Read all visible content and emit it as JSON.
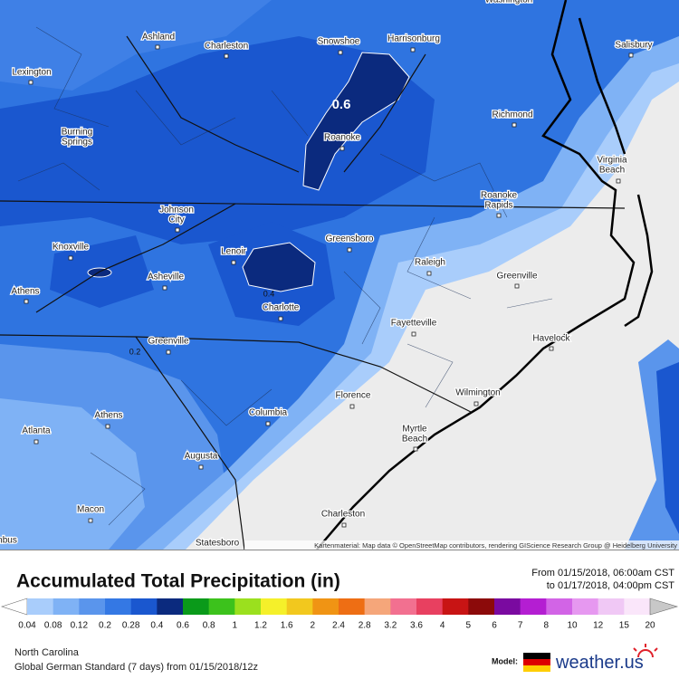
{
  "map": {
    "cities": [
      [
        "Washington"
      ],
      [
        "Ashland"
      ],
      [
        "Charleston"
      ],
      [
        "Snowshoe"
      ],
      [
        "Harrisonburg"
      ],
      [
        "Salisbury"
      ],
      [
        "Lexington"
      ],
      [
        "Richmond"
      ],
      [
        "Burning",
        "Springs"
      ],
      [
        "Roanoke"
      ],
      [
        "Virginia",
        "Beach"
      ],
      [
        "Roanoke",
        "Rapids"
      ],
      [
        "Johnson",
        "City"
      ],
      [
        "Greensboro"
      ],
      [
        "Knoxville"
      ],
      [
        "Lenoir"
      ],
      [
        "Raleigh"
      ],
      [
        "Asheville"
      ],
      [
        "Greenville"
      ],
      [
        "Athens"
      ],
      [
        "Charlotte"
      ],
      [
        "Fayetteville"
      ],
      [
        "Havelock"
      ],
      [
        "Greenville"
      ],
      [
        "Florence"
      ],
      [
        "Wilmington"
      ],
      [
        "Athens"
      ],
      [
        "Columbia"
      ],
      [
        "Atlanta"
      ],
      [
        "Myrtle",
        "Beach"
      ],
      [
        "Augusta"
      ],
      [
        "Macon"
      ],
      [
        "Charleston"
      ],
      [
        "Statesboro"
      ],
      [
        "nbus"
      ]
    ],
    "contour_labels": [
      "0.6",
      "0.4",
      "0.2"
    ],
    "attribution": "Kartenmaterial: Map data © OpenStreetMap contributors, rendering GIScience Research Group @ Heidelberg University"
  },
  "header": {
    "title": "Accumulated Total Precipitation (in)",
    "valid_from": "From 01/15/2018, 06:00am CST",
    "valid_to": "to 01/17/2018, 04:00pm CST"
  },
  "legend": {
    "labels": [
      "0.04",
      "0.08",
      "0.12",
      "0.2",
      "0.28",
      "0.4",
      "0.6",
      "0.8",
      "1",
      "1.2",
      "1.6",
      "2",
      "2.4",
      "2.8",
      "3.2",
      "3.6",
      "4",
      "5",
      "6",
      "7",
      "8",
      "10",
      "12",
      "15",
      "20"
    ],
    "colors": [
      "#ffffff",
      "#a9cdfb",
      "#7fb2f5",
      "#5a95ec",
      "#3478e4",
      "#1a57cf",
      "#0b2a7e",
      "#0a9a1a",
      "#3cc21c",
      "#9be01e",
      "#f5f02a",
      "#f2c81e",
      "#f09414",
      "#ee6e14",
      "#f5a67a",
      "#f27090",
      "#e84060",
      "#c81414",
      "#8c0a0a",
      "#7a0aa0",
      "#b41ed2",
      "#d264e6",
      "#e698f0",
      "#f0c8f5",
      "#fae6fa",
      "#c8c8c8"
    ]
  },
  "footer": {
    "region": "North Carolina",
    "model_run": "Global German Standard (7 days) from 01/15/2018/12z",
    "model_label": "Model:",
    "brand_name": "weather",
    "brand_tld": ".us"
  }
}
